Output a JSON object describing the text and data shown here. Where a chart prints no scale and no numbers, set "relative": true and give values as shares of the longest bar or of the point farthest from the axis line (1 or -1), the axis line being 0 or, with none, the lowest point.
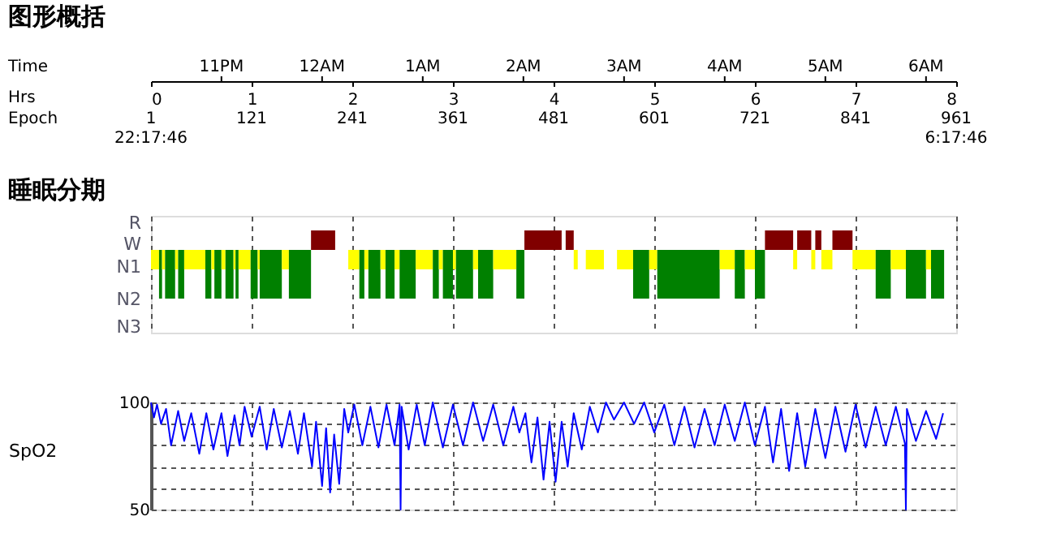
{
  "chart_data": [
    {
      "type": "bar",
      "relative": true,
      "title": "睡眠分期",
      "xlim": [
        0,
        8
      ],
      "xticks": [
        0,
        1,
        2,
        3,
        4,
        5,
        6,
        7,
        8
      ],
      "grid": "x",
      "annotations": [
        "图形概括",
        "Time",
        "Hrs",
        "Epoch",
        "R",
        "W",
        "N1",
        "N2",
        "N3",
        "11PM",
        "12AM",
        "1AM",
        "2AM",
        "3AM",
        "4AM",
        "5AM",
        "6AM",
        "1",
        "121",
        "241",
        "361",
        "481",
        "601",
        "721",
        "841",
        "961",
        "22:17:46",
        "6:17:46"
      ],
      "x": [
        0.04,
        0.095,
        0.125,
        0.19,
        0.255,
        0.3,
        0.435,
        0.57,
        0.615,
        0.665,
        0.72,
        0.78,
        0.83,
        0.855,
        0.93,
        1.025,
        1.07,
        1.19,
        1.335,
        1.48,
        1.71,
        1.895,
        2.015,
        2.095,
        2.14,
        2.22,
        2.305,
        2.375,
        2.445,
        2.55,
        2.715,
        2.83,
        2.88,
        2.95,
        3.015,
        3.115,
        3.225,
        3.325,
        3.515,
        3.67,
        3.895,
        4.1,
        4.16,
        4.22,
        4.28,
        4.41,
        4.565,
        4.71,
        4.87,
        4.99,
        5.34,
        5.725,
        5.85,
        5.95,
        6.05,
        6.24,
        6.4,
        6.49,
        6.58,
        6.63,
        6.715,
        6.87,
        7.085,
        7.275,
        7.425,
        7.6,
        7.725,
        7.815
      ],
      "values": [
        -0.4,
        -1,
        -0.4,
        -1,
        -0.4,
        -1,
        -0.4,
        -1,
        -0.4,
        -1,
        -0.4,
        -1,
        -0.4,
        -1,
        -0.4,
        -1,
        -0.4,
        -1,
        -0.4,
        -1,
        0.4,
        0,
        -0.4,
        -1,
        -0.4,
        -1,
        -0.4,
        -1,
        -0.4,
        -1,
        -0.4,
        -1,
        -0.4,
        -1,
        -0.4,
        -1,
        -0.4,
        -1,
        -0.4,
        -1,
        0.4,
        0,
        0.4,
        -0.4,
        0,
        -0.4,
        0,
        -0.4,
        -1,
        -0.4,
        -1,
        -0.4,
        -1,
        -0.4,
        -1,
        0.4,
        -0.4,
        0.4,
        -0.4,
        0.4,
        -0.4,
        0.4,
        -0.4,
        -1,
        -0.4,
        -1,
        -0.4,
        -1
      ],
      "colors": [
        "#ffff00",
        "#008000",
        "#ffff00",
        "#008000",
        "#ffff00",
        "#008000",
        "#ffff00",
        "#008000",
        "#ffff00",
        "#008000",
        "#ffff00",
        "#008000",
        "#ffff00",
        "#008000",
        "#ffff00",
        "#008000",
        "#ffff00",
        "#008000",
        "#ffff00",
        "#008000",
        "#800000",
        "#c0c0c0",
        "#ffff00",
        "#008000",
        "#ffff00",
        "#008000",
        "#ffff00",
        "#008000",
        "#ffff00",
        "#008000",
        "#ffff00",
        "#008000",
        "#ffff00",
        "#008000",
        "#ffff00",
        "#008000",
        "#ffff00",
        "#008000",
        "#ffff00",
        "#008000",
        "#800000",
        "#c0c0c0",
        "#800000",
        "#ffff00",
        "#c0c0c0",
        "#ffff00",
        "#c0c0c0",
        "#ffff00",
        "#008000",
        "#ffff00",
        "#008000",
        "#ffff00",
        "#008000",
        "#ffff00",
        "#008000",
        "#800000",
        "#ffff00",
        "#800000",
        "#ffff00",
        "#800000",
        "#ffff00",
        "#800000",
        "#ffff00",
        "#008000",
        "#ffff00",
        "#008000",
        "#ffff00",
        "#008000"
      ]
    },
    {
      "type": "line",
      "ylabel": "SpO2",
      "xlim": [
        0,
        8
      ],
      "xticks": [
        {
          "value": 1,
          "label": null
        },
        {
          "value": 2,
          "label": null
        },
        {
          "value": 3,
          "label": null
        },
        {
          "value": 4,
          "label": null
        },
        {
          "value": 5,
          "label": null
        },
        {
          "value": 6,
          "label": null
        },
        {
          "value": 7,
          "label": null
        }
      ],
      "ylim": [
        50,
        100
      ],
      "yticks": [
        50,
        {
          "value": 60,
          "label": null
        },
        {
          "value": 70,
          "label": null
        },
        {
          "value": 80,
          "label": null
        },
        {
          "value": 90,
          "label": null
        },
        100
      ],
      "tick_labels": "y",
      "grid": true,
      "line_style": "solid",
      "series": [
        {
          "color": "#0000ff",
          "x": [
            0.0,
            0.03,
            0.06,
            0.1,
            0.15,
            0.2,
            0.27,
            0.33,
            0.4,
            0.48,
            0.55,
            0.62,
            0.7,
            0.76,
            0.83,
            0.88,
            0.93,
            1.0,
            1.08,
            1.15,
            1.22,
            1.3,
            1.38,
            1.46,
            1.52,
            1.6,
            1.64,
            1.7,
            1.74,
            1.78,
            1.82,
            1.87,
            1.92,
            1.96,
            2.02,
            2.1,
            2.18,
            2.26,
            2.34,
            2.42,
            2.47,
            2.48,
            2.49,
            2.56,
            2.64,
            2.72,
            2.8,
            2.9,
            3.0,
            3.1,
            3.2,
            3.3,
            3.4,
            3.5,
            3.6,
            3.66,
            3.72,
            3.78,
            3.84,
            3.9,
            3.96,
            4.02,
            4.08,
            4.14,
            4.2,
            4.28,
            4.36,
            4.44,
            4.52,
            4.6,
            4.7,
            4.8,
            4.9,
            5.0,
            5.1,
            5.2,
            5.3,
            5.4,
            5.5,
            5.6,
            5.7,
            5.8,
            5.9,
            6.0,
            6.1,
            6.18,
            6.26,
            6.34,
            6.42,
            6.5,
            6.6,
            6.7,
            6.8,
            6.9,
            7.0,
            7.1,
            7.2,
            7.3,
            7.4,
            7.49,
            7.5,
            7.51,
            7.6,
            7.7,
            7.8,
            7.87
          ],
          "values": [
            100,
            93,
            99,
            90,
            97,
            80,
            96,
            82,
            95,
            76,
            95,
            78,
            95,
            75,
            94,
            80,
            98,
            84,
            98,
            78,
            97,
            79,
            96,
            76,
            95,
            70,
            91,
            61,
            88,
            58,
            85,
            62,
            97,
            86,
            99,
            80,
            98,
            79,
            99,
            80,
            99,
            50,
            98,
            78,
            99,
            80,
            100,
            79,
            99,
            80,
            100,
            82,
            99,
            80,
            98,
            86,
            95,
            72,
            93,
            64,
            91,
            63,
            91,
            70,
            95,
            78,
            98,
            86,
            100,
            92,
            100,
            90,
            100,
            86,
            99,
            80,
            98,
            79,
            97,
            80,
            99,
            82,
            100,
            80,
            98,
            72,
            97,
            68,
            95,
            70,
            97,
            74,
            98,
            77,
            99,
            79,
            98,
            80,
            98,
            81,
            50,
            97,
            82,
            96,
            83,
            95
          ]
        }
      ]
    }
  ]
}
